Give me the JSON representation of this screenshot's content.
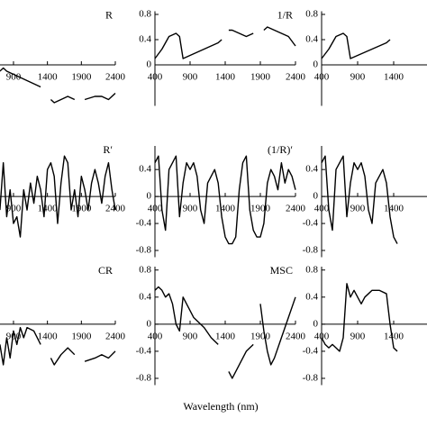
{
  "xlabel": "Wavelength (nm)",
  "chart_data": [
    {
      "type": "line",
      "title": "R",
      "xlim": [
        400,
        2400
      ],
      "ylim": [
        -0.65,
        0.85
      ],
      "xticks": [
        900,
        1400,
        1900,
        2400
      ],
      "x": [
        700,
        750,
        800,
        900,
        1000,
        1100,
        1200,
        1300,
        1350,
        1450,
        1500,
        1600,
        1700,
        1800,
        1850,
        1950,
        2100,
        2200,
        2300,
        2400
      ],
      "values": [
        -0.1,
        -0.05,
        -0.1,
        -0.15,
        -0.2,
        -0.25,
        -0.3,
        -0.35,
        null,
        -0.55,
        -0.6,
        -0.55,
        -0.5,
        -0.55,
        null,
        -0.55,
        -0.5,
        -0.5,
        -0.55,
        -0.45
      ]
    },
    {
      "type": "line",
      "title": "1/R",
      "xlim": [
        400,
        2400
      ],
      "ylim": [
        -0.65,
        0.85
      ],
      "xticks": [
        400,
        900,
        1400,
        1900,
        2400
      ],
      "yticks": [
        0.0,
        0.4,
        0.8
      ],
      "x": [
        400,
        500,
        600,
        700,
        750,
        800,
        900,
        1000,
        1100,
        1200,
        1300,
        1350,
        1400,
        1450,
        1500,
        1600,
        1700,
        1800,
        1850,
        1950,
        2000,
        2100,
        2200,
        2300,
        2400
      ],
      "values": [
        0.1,
        0.25,
        0.45,
        0.5,
        0.45,
        0.1,
        0.15,
        0.2,
        0.25,
        0.3,
        0.35,
        0.4,
        null,
        0.55,
        0.55,
        0.5,
        0.45,
        0.5,
        null,
        0.55,
        0.6,
        0.55,
        0.5,
        0.45,
        0.3
      ]
    },
    {
      "type": "line",
      "xlim": [
        400,
        2400
      ],
      "ylim": [
        -0.65,
        0.85
      ],
      "xticks": [
        400,
        900,
        1400
      ],
      "yticks": [
        0.0,
        0.4,
        0.8
      ],
      "x": [
        400,
        500,
        600,
        700,
        750,
        800,
        900,
        1000,
        1100,
        1200,
        1300,
        1350
      ],
      "values": [
        0.1,
        0.25,
        0.45,
        0.5,
        0.45,
        0.1,
        0.15,
        0.2,
        0.25,
        0.3,
        0.35,
        0.4
      ]
    },
    {
      "type": "line",
      "title": "R′",
      "xlim": [
        400,
        2400
      ],
      "ylim": [
        -0.9,
        0.75
      ],
      "xticks": [
        900,
        1400,
        1900,
        2400
      ],
      "x": [
        700,
        750,
        800,
        850,
        900,
        950,
        1000,
        1050,
        1100,
        1150,
        1200,
        1250,
        1300,
        1350,
        1400,
        1450,
        1500,
        1550,
        1600,
        1650,
        1700,
        1750,
        1800,
        1850,
        1900,
        1950,
        2000,
        2050,
        2100,
        2150,
        2200,
        2250,
        2300,
        2350,
        2400
      ],
      "values": [
        -0.2,
        0.5,
        -0.3,
        0.1,
        -0.4,
        -0.3,
        -0.6,
        0.1,
        -0.2,
        0.2,
        -0.1,
        0.3,
        0.1,
        -0.3,
        0.4,
        0.5,
        0.3,
        -0.4,
        0.2,
        0.6,
        0.5,
        -0.2,
        0.1,
        -0.3,
        0.3,
        0.1,
        -0.2,
        0.2,
        0.4,
        0.2,
        -0.1,
        0.3,
        0.5,
        0.1,
        -0.2
      ]
    },
    {
      "type": "line",
      "title": "(1/R)′",
      "xlim": [
        400,
        2400
      ],
      "ylim": [
        -0.9,
        0.75
      ],
      "xticks": [
        400,
        900,
        1400,
        1900,
        2400
      ],
      "yticks": [
        -0.8,
        -0.4,
        0.0,
        0.4
      ],
      "x": [
        400,
        450,
        500,
        550,
        600,
        650,
        700,
        750,
        800,
        850,
        900,
        950,
        1000,
        1050,
        1100,
        1150,
        1200,
        1250,
        1300,
        1350,
        1400,
        1450,
        1500,
        1550,
        1600,
        1650,
        1700,
        1750,
        1800,
        1850,
        1900,
        1950,
        2000,
        2050,
        2100,
        2150,
        2200,
        2250,
        2300,
        2350,
        2400
      ],
      "values": [
        0.5,
        0.6,
        -0.2,
        -0.5,
        0.4,
        0.5,
        0.6,
        -0.3,
        0.2,
        0.5,
        0.4,
        0.5,
        0.3,
        -0.2,
        -0.4,
        0.2,
        0.3,
        0.4,
        0.2,
        -0.3,
        -0.6,
        -0.7,
        -0.7,
        -0.6,
        0.1,
        0.5,
        0.6,
        -0.2,
        -0.5,
        -0.6,
        -0.6,
        -0.4,
        0.2,
        0.4,
        0.3,
        0.1,
        0.5,
        0.2,
        0.4,
        0.3,
        0.1
      ]
    },
    {
      "type": "line",
      "xlim": [
        400,
        2400
      ],
      "ylim": [
        -0.9,
        0.75
      ],
      "xticks": [
        400,
        900,
        1400
      ],
      "yticks": [
        -0.8,
        -0.4,
        0.0,
        0.4
      ],
      "x": [
        400,
        450,
        500,
        550,
        600,
        650,
        700,
        750,
        800,
        850,
        900,
        950,
        1000,
        1050,
        1100,
        1150,
        1200,
        1250,
        1300,
        1350,
        1400,
        1450
      ],
      "values": [
        0.5,
        0.6,
        -0.2,
        -0.5,
        0.4,
        0.5,
        0.6,
        -0.3,
        0.2,
        0.5,
        0.4,
        0.5,
        0.3,
        -0.2,
        -0.4,
        0.2,
        0.3,
        0.4,
        0.2,
        -0.3,
        -0.6,
        -0.7
      ]
    },
    {
      "type": "line",
      "title": "CR",
      "xlim": [
        400,
        2400
      ],
      "ylim": [
        -0.9,
        0.85
      ],
      "xticks": [
        900,
        1400,
        1900,
        2400
      ],
      "x": [
        700,
        750,
        800,
        850,
        900,
        950,
        1000,
        1050,
        1100,
        1200,
        1300,
        1350,
        1450,
        1500,
        1600,
        1700,
        1800,
        1850,
        1950,
        2100,
        2200,
        2300,
        2400
      ],
      "values": [
        -0.3,
        -0.6,
        -0.2,
        -0.5,
        -0.1,
        -0.3,
        -0.05,
        -0.2,
        -0.05,
        -0.1,
        -0.3,
        null,
        -0.5,
        -0.6,
        -0.45,
        -0.35,
        -0.45,
        null,
        -0.55,
        -0.5,
        -0.45,
        -0.5,
        -0.4
      ]
    },
    {
      "type": "line",
      "title": "MSC",
      "xlim": [
        400,
        2400
      ],
      "ylim": [
        -0.9,
        0.85
      ],
      "xticks": [
        400,
        900,
        1400,
        1900,
        2400
      ],
      "yticks": [
        -0.8,
        -0.4,
        0.0,
        0.4,
        0.8
      ],
      "x": [
        400,
        450,
        500,
        550,
        600,
        650,
        700,
        750,
        800,
        850,
        900,
        950,
        1000,
        1100,
        1200,
        1300,
        1350,
        1450,
        1500,
        1550,
        1600,
        1700,
        1800,
        1850,
        1900,
        1950,
        2000,
        2050,
        2100,
        2200,
        2300,
        2400
      ],
      "values": [
        0.5,
        0.55,
        0.5,
        0.4,
        0.45,
        0.3,
        0.0,
        -0.1,
        0.4,
        0.3,
        0.2,
        0.1,
        0.05,
        -0.05,
        -0.2,
        -0.3,
        null,
        -0.7,
        -0.8,
        -0.7,
        -0.6,
        -0.4,
        -0.3,
        null,
        0.3,
        -0.1,
        -0.4,
        -0.6,
        -0.5,
        -0.2,
        0.1,
        0.4
      ]
    },
    {
      "type": "line",
      "xlim": [
        400,
        2400
      ],
      "ylim": [
        -0.9,
        0.85
      ],
      "xticks": [
        400,
        900,
        1400
      ],
      "yticks": [
        -0.8,
        -0.4,
        0.0,
        0.4,
        0.8
      ],
      "x": [
        400,
        450,
        500,
        550,
        600,
        650,
        700,
        750,
        800,
        850,
        900,
        950,
        1000,
        1050,
        1100,
        1200,
        1300,
        1350,
        1400,
        1450
      ],
      "values": [
        -0.2,
        -0.3,
        -0.35,
        -0.3,
        -0.35,
        -0.4,
        -0.2,
        0.6,
        0.4,
        0.5,
        0.4,
        0.3,
        0.4,
        0.45,
        0.5,
        0.5,
        0.45,
        0.0,
        -0.35,
        -0.4
      ]
    }
  ]
}
